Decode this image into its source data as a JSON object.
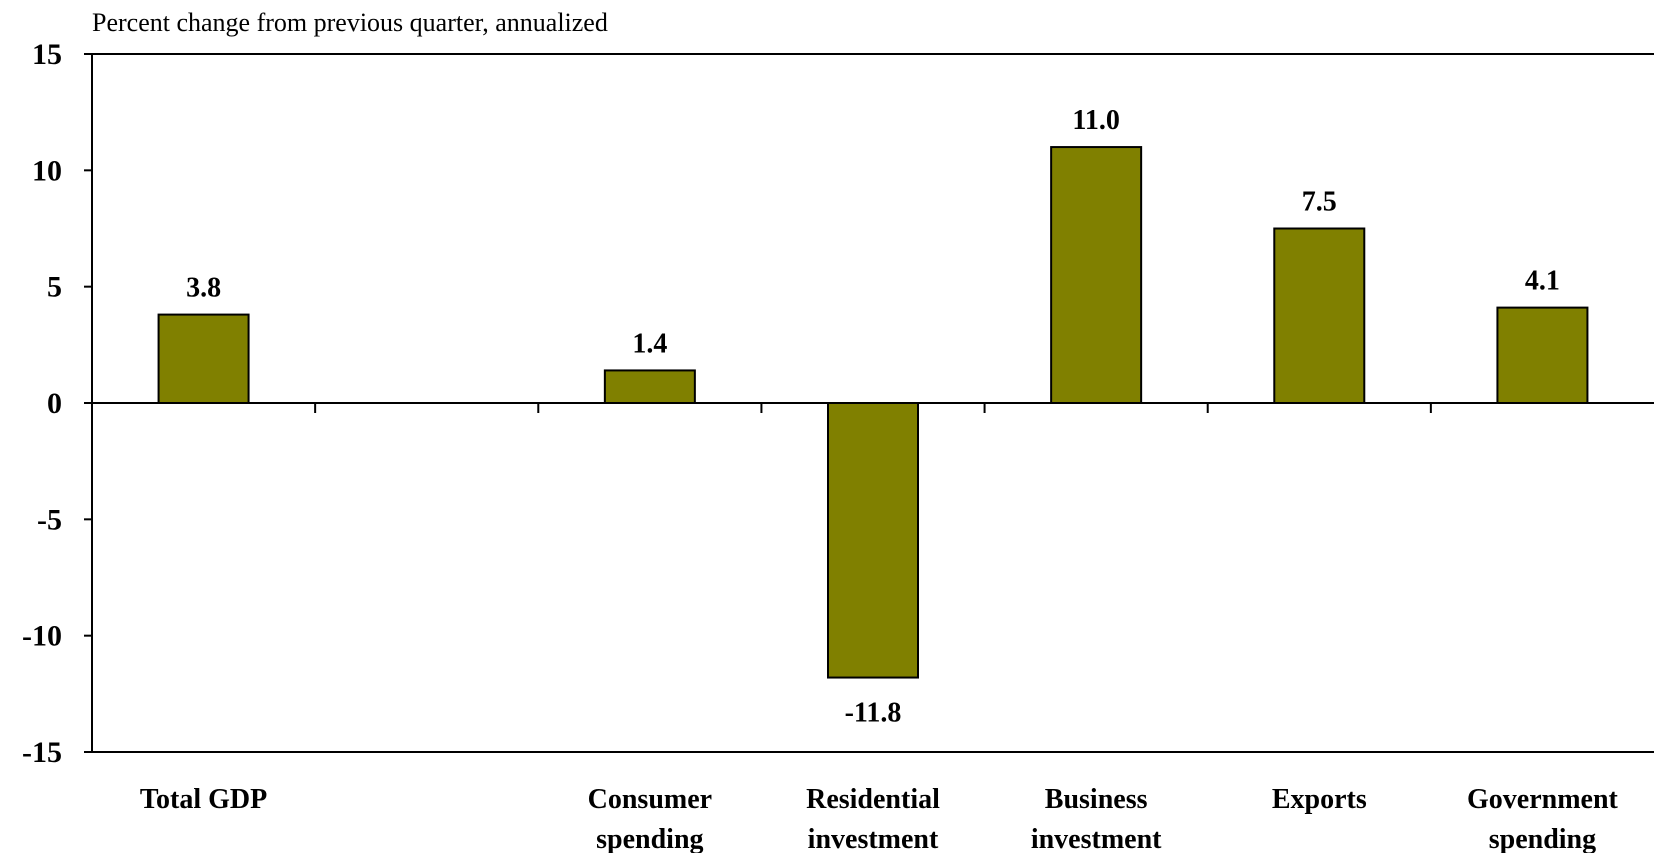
{
  "chart_data": {
    "type": "bar",
    "ylabel": "Percent change from previous quarter, annualized",
    "ylim": [
      -15,
      15
    ],
    "yticks": [
      "15",
      "10",
      "5",
      "0",
      "-5",
      "-10",
      "-15"
    ],
    "ytick_values": [
      15,
      10,
      5,
      0,
      -5,
      -10,
      -15
    ],
    "slots": 7,
    "categories": [
      {
        "lines": [
          "Total GDP"
        ],
        "slot": 0
      },
      {
        "lines": [
          "Consumer",
          "spending"
        ],
        "slot": 2
      },
      {
        "lines": [
          "Residential",
          "investment"
        ],
        "slot": 3
      },
      {
        "lines": [
          "Business",
          "investment"
        ],
        "slot": 4
      },
      {
        "lines": [
          "Exports"
        ],
        "slot": 5
      },
      {
        "lines": [
          "Government",
          "spending"
        ],
        "slot": 6
      }
    ],
    "values": [
      3.8,
      1.4,
      -11.8,
      11.0,
      7.5,
      4.1
    ],
    "value_labels": [
      "3.8",
      "1.4",
      "-11.8",
      "11.0",
      "7.5",
      "4.1"
    ],
    "bar_color": "#808000",
    "grid": false,
    "legend": "none"
  }
}
